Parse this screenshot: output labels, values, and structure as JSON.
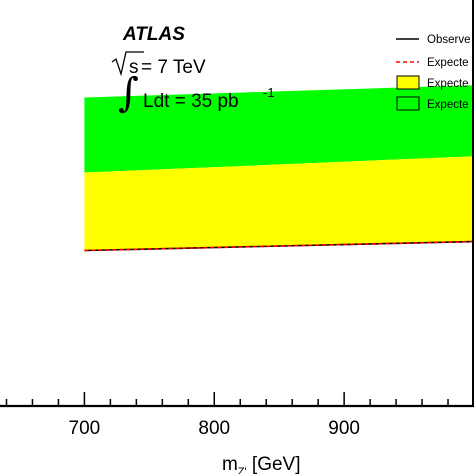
{
  "chart_data": {
    "type": "area",
    "x": [
      700,
      1000
    ],
    "xlim": [
      635,
      1000
    ],
    "ylim": [
      0,
      1
    ],
    "xticks": [
      700,
      800,
      900
    ],
    "xtick_labels": [
      "700",
      "800",
      "900"
    ],
    "xlabel_main": "m",
    "xlabel_sub": "Z'",
    "xlabel_unit": " [GeV]",
    "series": [
      {
        "name": "Observe",
        "kind": "line",
        "color": "#000000",
        "values": [
          0.383,
          0.405
        ]
      },
      {
        "name": "Expecte",
        "kind": "dashed",
        "color": "#ff0000",
        "values": [
          0.383,
          0.405
        ]
      },
      {
        "name": "Expecte",
        "kind": "band-1sigma",
        "color": "#ffff00",
        "low": [
          0.383,
          0.405
        ],
        "high": [
          0.575,
          0.615
        ]
      },
      {
        "name": "Expecte",
        "kind": "band-2sigma",
        "color": "#00ff00",
        "low": [
          0.575,
          0.615
        ],
        "high": [
          0.76,
          0.79
        ]
      }
    ],
    "legend_placement": "top-right",
    "grid": false
  },
  "annotations": {
    "experiment": "ATLAS",
    "energy_sqrt": "s",
    "energy_rest": " = 7 TeV",
    "lumi_text": "Ldt = 35 pb",
    "lumi_exp": "-1"
  }
}
